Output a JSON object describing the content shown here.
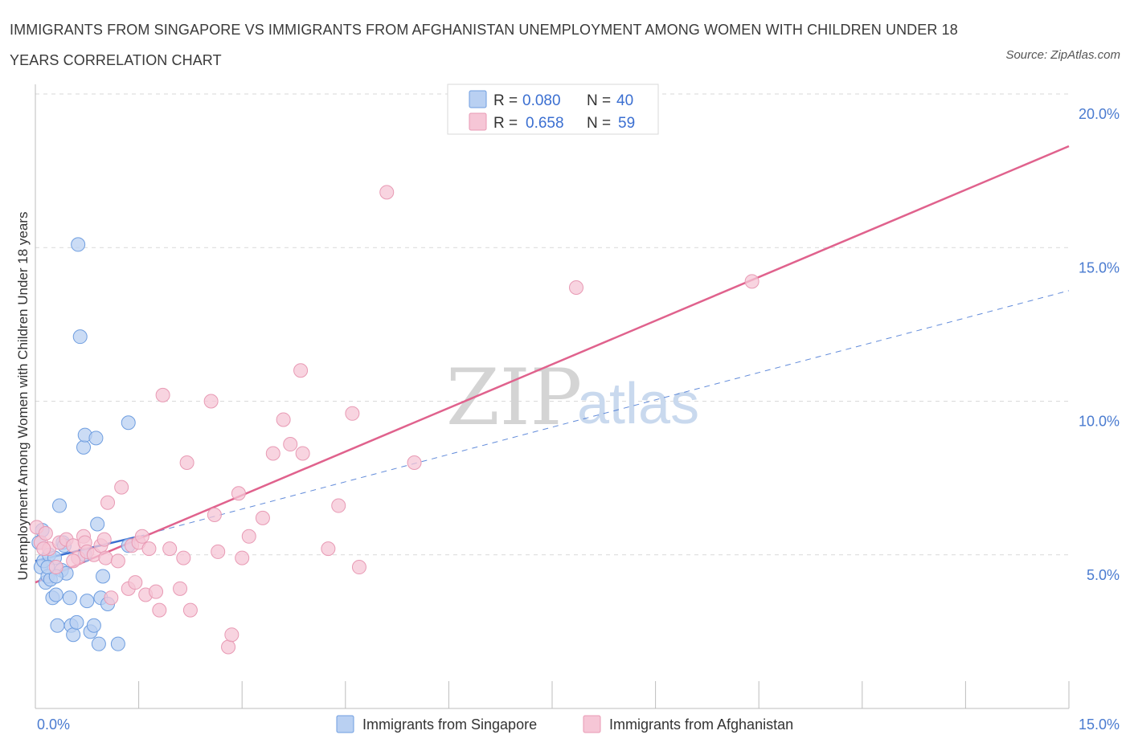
{
  "title": "IMMIGRANTS FROM SINGAPORE VS IMMIGRANTS FROM AFGHANISTAN UNEMPLOYMENT AMONG WOMEN WITH CHILDREN UNDER 18 YEARS CORRELATION CHART",
  "source": "Source: ZipAtlas.com",
  "watermark": {
    "zip": "ZIP",
    "atlas": "atlas"
  },
  "colors": {
    "singapore_fill": "#b9d0f2",
    "singapore_stroke": "#6f9ee0",
    "singapore_line": "#3b6fd1",
    "afghanistan_fill": "#f6c6d6",
    "afghanistan_stroke": "#e89ab4",
    "afghanistan_line": "#e0628d",
    "grid": "#d9d9d9",
    "tick_label": "#4a7bd0"
  },
  "legend": {
    "rows": [
      {
        "r_label": "R =",
        "r_value": "0.080",
        "n_label": "N =",
        "n_value": "40"
      },
      {
        "r_label": "R =",
        "r_value": "0.658",
        "n_label": "N =",
        "n_value": "59"
      }
    ]
  },
  "chart_data": {
    "type": "scatter",
    "title": "IMMIGRANTS FROM SINGAPORE VS IMMIGRANTS FROM AFGHANISTAN UNEMPLOYMENT AMONG WOMEN WITH CHILDREN UNDER 18 YEARS CORRELATION CHART",
    "xlabel": "",
    "ylabel": "Unemployment Among Women with Children Under 18 years",
    "xlim": [
      0,
      15
    ],
    "ylim": [
      0,
      20
    ],
    "x_tick_labels": [
      "0.0%",
      "15.0%"
    ],
    "y_ticks": [
      5,
      10,
      15,
      20
    ],
    "y_tick_labels": [
      "5.0%",
      "10.0%",
      "15.0%",
      "20.0%"
    ],
    "grid": true,
    "legend_position": "top-center",
    "series": [
      {
        "name": "Immigrants from Singapore",
        "r": 0.08,
        "n": 40,
        "trend_solid": [
          [
            0.0,
            4.8
          ],
          [
            1.5,
            5.6
          ]
        ],
        "trend_dashed": [
          [
            1.5,
            5.6
          ],
          [
            15.0,
            13.6
          ]
        ],
        "points": [
          [
            0.05,
            5.4
          ],
          [
            0.08,
            4.6
          ],
          [
            0.12,
            4.8
          ],
          [
            0.15,
            4.1
          ],
          [
            0.18,
            4.3
          ],
          [
            0.2,
            5.0
          ],
          [
            0.22,
            4.2
          ],
          [
            0.25,
            3.6
          ],
          [
            0.28,
            4.9
          ],
          [
            0.3,
            3.7
          ],
          [
            0.32,
            2.7
          ],
          [
            0.35,
            6.6
          ],
          [
            0.38,
            4.5
          ],
          [
            0.4,
            5.4
          ],
          [
            0.42,
            5.3
          ],
          [
            0.45,
            4.4
          ],
          [
            0.5,
            3.6
          ],
          [
            0.52,
            2.7
          ],
          [
            0.55,
            2.4
          ],
          [
            0.6,
            2.8
          ],
          [
            0.62,
            15.1
          ],
          [
            0.65,
            12.1
          ],
          [
            0.7,
            8.5
          ],
          [
            0.72,
            8.9
          ],
          [
            0.72,
            5.0
          ],
          [
            0.75,
            3.5
          ],
          [
            0.8,
            2.5
          ],
          [
            0.85,
            2.7
          ],
          [
            0.88,
            8.8
          ],
          [
            0.9,
            6.0
          ],
          [
            0.92,
            2.1
          ],
          [
            0.95,
            3.6
          ],
          [
            0.98,
            4.3
          ],
          [
            1.05,
            3.4
          ],
          [
            1.2,
            2.1
          ],
          [
            1.35,
            9.3
          ],
          [
            1.35,
            5.3
          ],
          [
            0.3,
            4.3
          ],
          [
            0.18,
            4.6
          ],
          [
            0.1,
            5.8
          ]
        ]
      },
      {
        "name": "Immigrants from Afghanistan",
        "r": 0.658,
        "n": 59,
        "trend_solid": [
          [
            0.0,
            4.1
          ],
          [
            15.0,
            18.3
          ]
        ],
        "points": [
          [
            0.02,
            5.9
          ],
          [
            0.08,
            5.4
          ],
          [
            0.15,
            5.7
          ],
          [
            0.2,
            5.2
          ],
          [
            0.35,
            5.4
          ],
          [
            0.45,
            5.5
          ],
          [
            0.55,
            5.3
          ],
          [
            0.62,
            4.9
          ],
          [
            0.7,
            5.6
          ],
          [
            0.72,
            5.4
          ],
          [
            0.75,
            5.1
          ],
          [
            0.85,
            5.0
          ],
          [
            0.95,
            5.3
          ],
          [
            1.0,
            5.5
          ],
          [
            1.02,
            4.9
          ],
          [
            1.05,
            6.7
          ],
          [
            1.1,
            3.6
          ],
          [
            1.2,
            4.8
          ],
          [
            1.25,
            7.2
          ],
          [
            1.35,
            3.9
          ],
          [
            1.4,
            5.3
          ],
          [
            1.45,
            4.1
          ],
          [
            1.5,
            5.4
          ],
          [
            1.55,
            5.6
          ],
          [
            1.6,
            3.7
          ],
          [
            1.65,
            5.2
          ],
          [
            1.75,
            3.8
          ],
          [
            1.8,
            3.2
          ],
          [
            1.85,
            10.2
          ],
          [
            1.95,
            5.2
          ],
          [
            2.1,
            3.9
          ],
          [
            2.15,
            4.9
          ],
          [
            2.2,
            8.0
          ],
          [
            2.25,
            3.2
          ],
          [
            2.55,
            10.0
          ],
          [
            2.6,
            6.3
          ],
          [
            2.65,
            5.1
          ],
          [
            2.8,
            2.0
          ],
          [
            2.85,
            2.4
          ],
          [
            2.95,
            7.0
          ],
          [
            3.0,
            4.9
          ],
          [
            3.1,
            5.6
          ],
          [
            3.3,
            6.2
          ],
          [
            3.45,
            8.3
          ],
          [
            3.6,
            9.4
          ],
          [
            3.7,
            8.6
          ],
          [
            3.85,
            11.0
          ],
          [
            3.88,
            8.3
          ],
          [
            4.25,
            5.2
          ],
          [
            4.4,
            6.6
          ],
          [
            4.6,
            9.6
          ],
          [
            4.7,
            4.6
          ],
          [
            5.1,
            16.8
          ],
          [
            5.5,
            8.0
          ],
          [
            7.85,
            13.7
          ],
          [
            10.4,
            13.9
          ],
          [
            0.3,
            4.6
          ],
          [
            0.55,
            4.8
          ],
          [
            0.12,
            5.2
          ]
        ]
      }
    ]
  }
}
